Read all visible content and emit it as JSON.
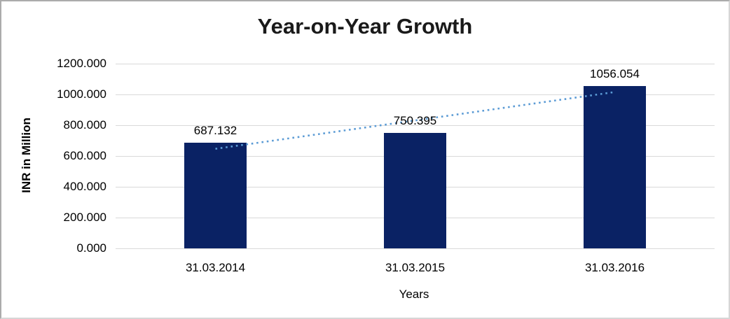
{
  "chart_data": {
    "type": "bar",
    "title": "Year-on-Year Growth",
    "xlabel": "Years",
    "ylabel": "INR in Million",
    "categories": [
      "31.03.2014",
      "31.03.2015",
      "31.03.2016"
    ],
    "values": [
      687.132,
      750.395,
      1056.054
    ],
    "data_labels": [
      "687.132",
      "750.395",
      "1056.054"
    ],
    "ylim": [
      0,
      1200
    ],
    "ytick_step": 200,
    "ytick_labels": [
      "0.000",
      "200.000",
      "400.000",
      "600.000",
      "800.000",
      "1000.000",
      "1200.000"
    ],
    "grid": true,
    "legend": false,
    "trendline": {
      "type": "linear",
      "style": "dotted"
    },
    "colors": {
      "bar": "#0a2264",
      "trendline": "#5b9bd5",
      "gridline": "#d9d9d9",
      "text": "#000000"
    }
  }
}
